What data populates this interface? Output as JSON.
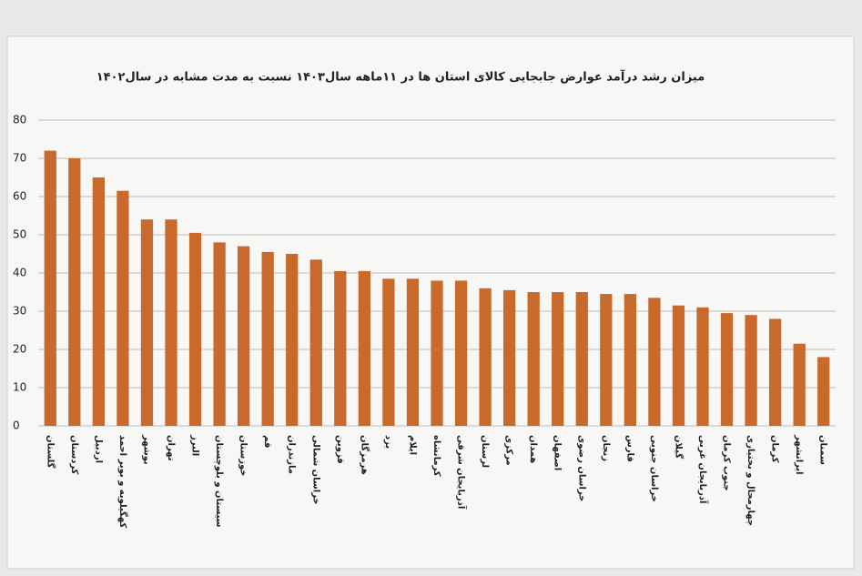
{
  "chart_data": {
    "type": "bar",
    "title": "میزان رشد درآمد عوارض جابجایی کالای استان ها در ۱۱ماهه سال۱۴۰۳ نسبت به مدت مشابه در سال۱۴۰۲",
    "categories": [
      "گلستان",
      "کردستان",
      "اردبیل",
      "کهگیلویه و بویر احمد",
      "بوشهر",
      "تهران",
      "البرز",
      "سیستان و بلوچستان",
      "خوزستان",
      "قم",
      "مازندران",
      "خراسان شمالی",
      "قزوین",
      "هرمزگان",
      "یزد",
      "ایلام",
      "کرمانشاه",
      "آذربایجان شرقی",
      "لرستان",
      "مرکزی",
      "همدان",
      "اصفهان",
      "خراسان رضوی",
      "زنجان",
      "فارس",
      "خراسان جنوبی",
      "گیلان",
      "آذربایجان غربی",
      "جنوب کرمان",
      "چهارمحال و بختیاری",
      "کرمان",
      "ایرانشهر",
      "سمنان"
    ],
    "values": [
      72,
      70,
      65,
      61.5,
      54,
      54,
      50.5,
      48,
      47,
      45.5,
      45,
      43.5,
      40.5,
      40.5,
      38.5,
      38.5,
      38,
      38,
      36,
      35.5,
      35,
      35,
      35,
      34.5,
      34.5,
      33.5,
      31.5,
      31,
      29.5,
      29,
      28,
      21.5,
      18
    ],
    "color": "#c9692c",
    "ylim": [
      0,
      80
    ],
    "yticks": [
      0,
      10,
      20,
      30,
      40,
      50,
      60,
      70,
      80
    ],
    "grid": true
  }
}
